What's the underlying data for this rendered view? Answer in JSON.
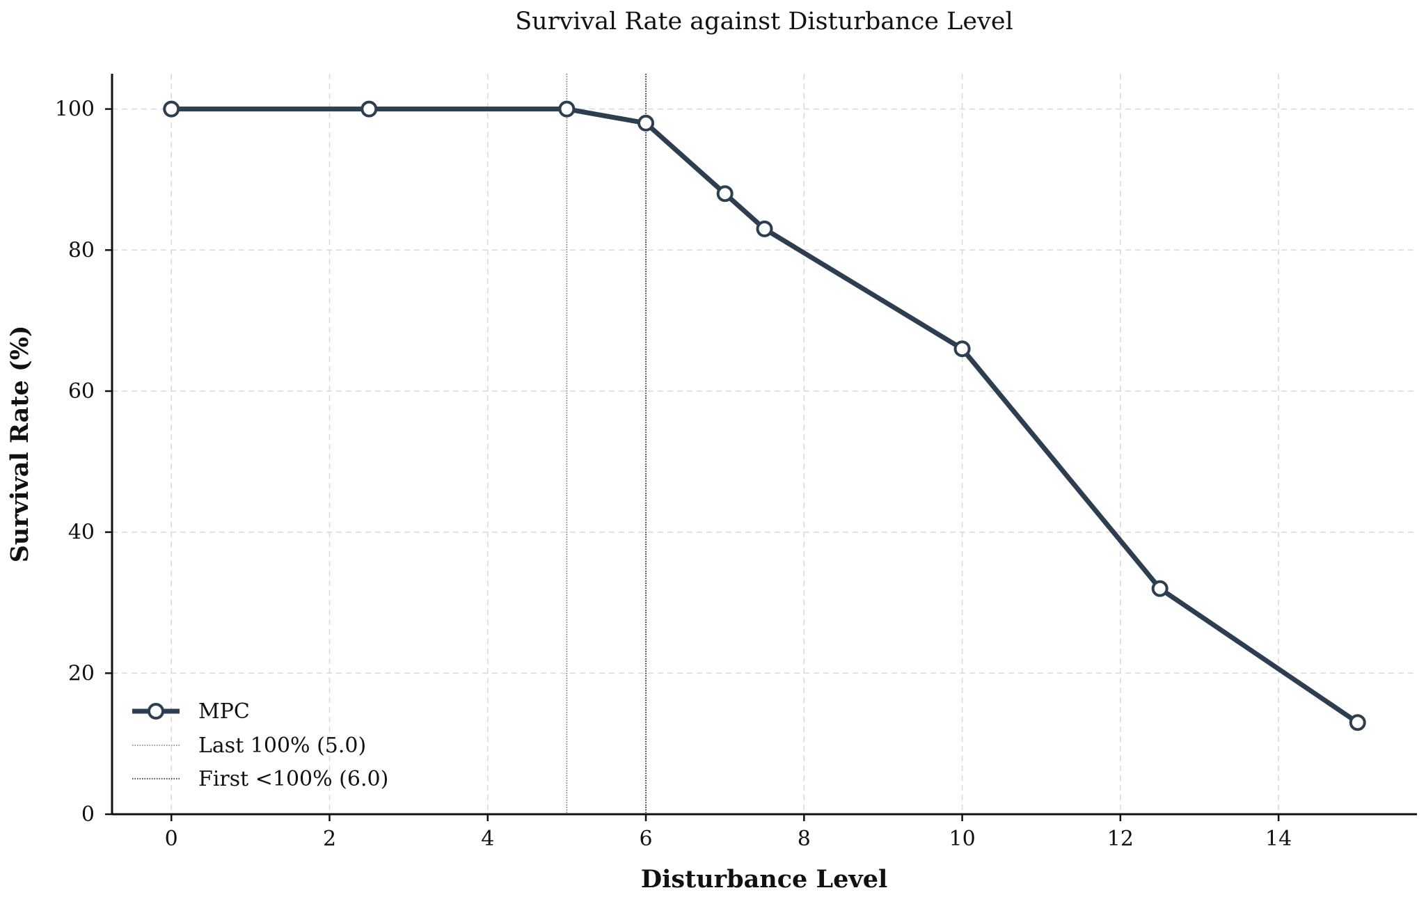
{
  "chart_data": {
    "type": "line",
    "title": "Survival Rate against Disturbance Level",
    "xlabel": "Disturbance Level",
    "ylabel": "Survival Rate (%)",
    "xlim": [
      -0.75,
      15.75
    ],
    "ylim": [
      0,
      105
    ],
    "x_ticks": [
      0,
      2,
      4,
      6,
      8,
      10,
      12,
      14
    ],
    "y_ticks": [
      0,
      20,
      40,
      60,
      80,
      100
    ],
    "grid": true,
    "legend_position": "lower-left",
    "series": [
      {
        "name": "MPC",
        "color": "#2c3e50",
        "marker": "open-circle",
        "x": [
          0,
          2.5,
          5,
          6,
          7,
          7.5,
          10,
          12.5,
          15
        ],
        "y": [
          100,
          100,
          100,
          98,
          88,
          83,
          66,
          32,
          13
        ]
      }
    ],
    "reference_lines": [
      {
        "name": "Last 100% (5.0)",
        "x": 5.0,
        "style": "dotted",
        "color": "#777777"
      },
      {
        "name": "First <100% (6.0)",
        "x": 6.0,
        "style": "dotted",
        "color": "#111111"
      }
    ]
  }
}
